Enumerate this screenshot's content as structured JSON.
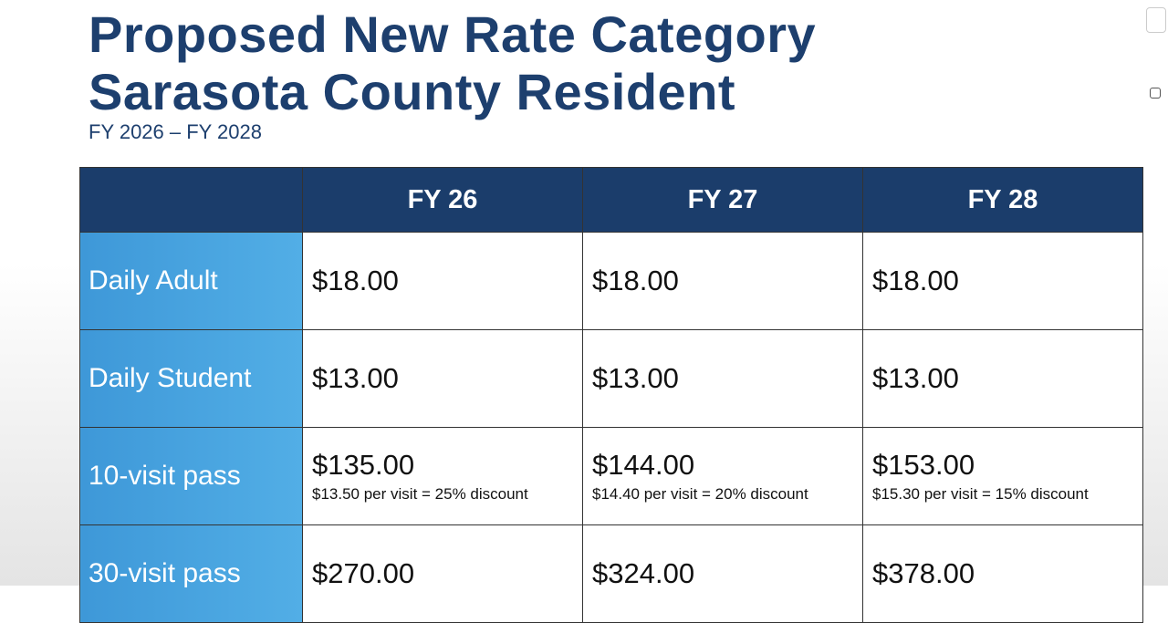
{
  "title": [
    "Proposed New Rate Category",
    "Sarasota County Resident"
  ],
  "subtitle": "FY 2026 – FY 2028",
  "table": {
    "header": [
      "FY 26",
      "FY 27",
      "FY 28"
    ],
    "rows": [
      {
        "label": "Daily Adult",
        "cells": [
          {
            "price": "$18.00"
          },
          {
            "price": "$18.00"
          },
          {
            "price": "$18.00"
          }
        ]
      },
      {
        "label": "Daily Student",
        "cells": [
          {
            "price": "$13.00"
          },
          {
            "price": "$13.00"
          },
          {
            "price": "$13.00"
          }
        ]
      },
      {
        "label": "10-visit pass",
        "cells": [
          {
            "price": "$135.00",
            "note": "$13.50 per visit = 25% discount"
          },
          {
            "price": "$144.00",
            "note": "$14.40 per visit = 20% discount"
          },
          {
            "price": "$153.00",
            "note": "$15.30 per visit = 15% discount"
          }
        ]
      },
      {
        "label": "30-visit pass",
        "cells": [
          {
            "price": "$270.00"
          },
          {
            "price": "$324.00"
          },
          {
            "price": "$378.00"
          }
        ]
      }
    ]
  }
}
